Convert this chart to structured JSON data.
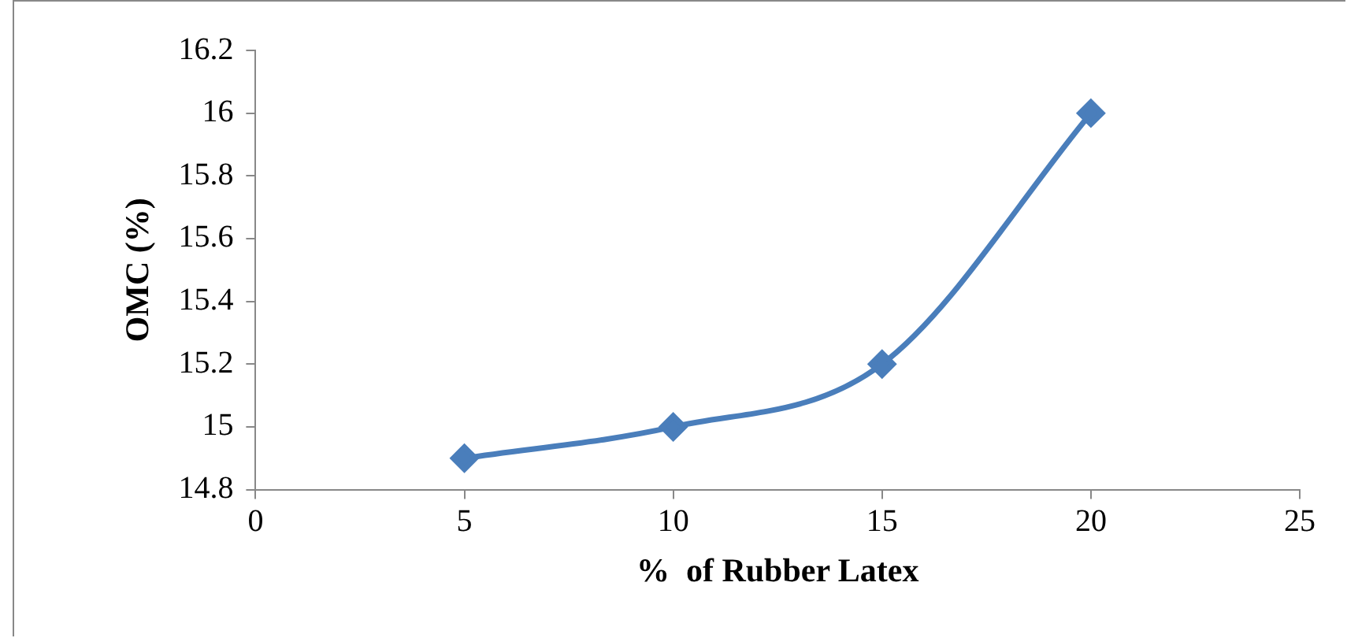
{
  "chart_data": {
    "type": "line",
    "xlabel": "%  of Rubber Latex",
    "ylabel": "OMC (%)",
    "x": [
      5,
      10,
      15,
      20
    ],
    "series": [
      {
        "color": "#4a7ebb",
        "values": [
          14.9,
          15.0,
          15.2,
          16.0
        ]
      }
    ],
    "xlim": [
      0,
      25
    ],
    "xticks": [
      0,
      5,
      10,
      15,
      20,
      25
    ],
    "ylim": [
      14.8,
      16.2
    ],
    "yticks": [
      14.8,
      15,
      15.2,
      15.4,
      15.6,
      15.8,
      16,
      16.2
    ],
    "grid": false,
    "legend": false,
    "marker": "diamond",
    "line_style": "solid"
  }
}
